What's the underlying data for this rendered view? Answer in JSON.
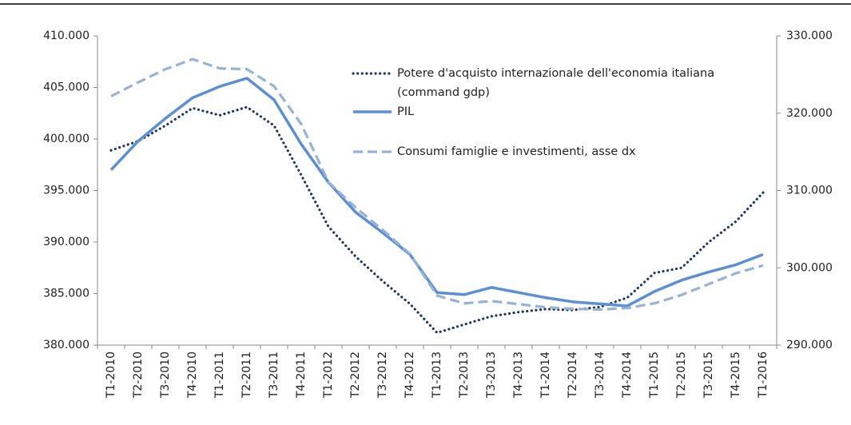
{
  "chart_data": {
    "type": "line",
    "categories": [
      "T1-2010",
      "T2-2010",
      "T3-2010",
      "T4-2010",
      "T1-2011",
      "T2-2011",
      "T3-2011",
      "T4-2011",
      "T1-2012",
      "T2-2012",
      "T3-2012",
      "T4-2012",
      "T1-2013",
      "T2-2013",
      "T3-2013",
      "T4-2013",
      "T1-2014",
      "T2-2014",
      "T3-2014",
      "T4-2014",
      "T1-2015",
      "T2-2015",
      "T3-2015",
      "T4-2015",
      "T1-2016"
    ],
    "series": [
      {
        "name": "Potere d'acquisto internazionale  dell'economia italiana (command gdp)",
        "color": "#1f3864",
        "style": "dotted",
        "values": [
          398900,
          399800,
          401300,
          403000,
          402300,
          403100,
          401300,
          396500,
          391500,
          388600,
          386200,
          384000,
          381200,
          382000,
          382800,
          383200,
          383500,
          383400,
          383700,
          384600,
          387000,
          387500,
          390000,
          392000,
          394800
        ]
      },
      {
        "name": "PIL",
        "color": "#5b8fd6",
        "style": "solid",
        "values": [
          397000,
          399800,
          402000,
          404000,
          405100,
          405900,
          403800,
          399500,
          395800,
          392900,
          390900,
          388800,
          385100,
          384900,
          385600,
          385100,
          384600,
          384200,
          384000,
          383800,
          385200,
          386300,
          387100,
          387800,
          388800
        ]
      },
      {
        "name": "Consumi famiglie e investimenti, asse dx",
        "color": "#95b3d7",
        "style": "dashed",
        "axis": "y2",
        "values": [
          322200,
          324000,
          325700,
          327000,
          325800,
          325700,
          323500,
          318600,
          311100,
          307800,
          304900,
          301800,
          296400,
          295400,
          295700,
          295300,
          294900,
          294700,
          294600,
          294800,
          295400,
          296500,
          297900,
          299300,
          300300
        ]
      }
    ],
    "ylim": [
      380000,
      410000
    ],
    "yticks": [
      {
        "value": 380000,
        "label": "380.000"
      },
      {
        "value": 385000,
        "label": "385.000"
      },
      {
        "value": 390000,
        "label": "390.000"
      },
      {
        "value": 395000,
        "label": "395.000"
      },
      {
        "value": 400000,
        "label": "400.000"
      },
      {
        "value": 405000,
        "label": "405.000"
      },
      {
        "value": 410000,
        "label": "410.000"
      }
    ],
    "y2lim": [
      290000,
      330000
    ],
    "y2ticks": [
      {
        "value": 290000,
        "label": "290.000"
      },
      {
        "value": 300000,
        "label": "300.000"
      },
      {
        "value": 310000,
        "label": "310.000"
      },
      {
        "value": 320000,
        "label": "320.000"
      },
      {
        "value": 330000,
        "label": "330.000"
      }
    ],
    "grid": false
  }
}
